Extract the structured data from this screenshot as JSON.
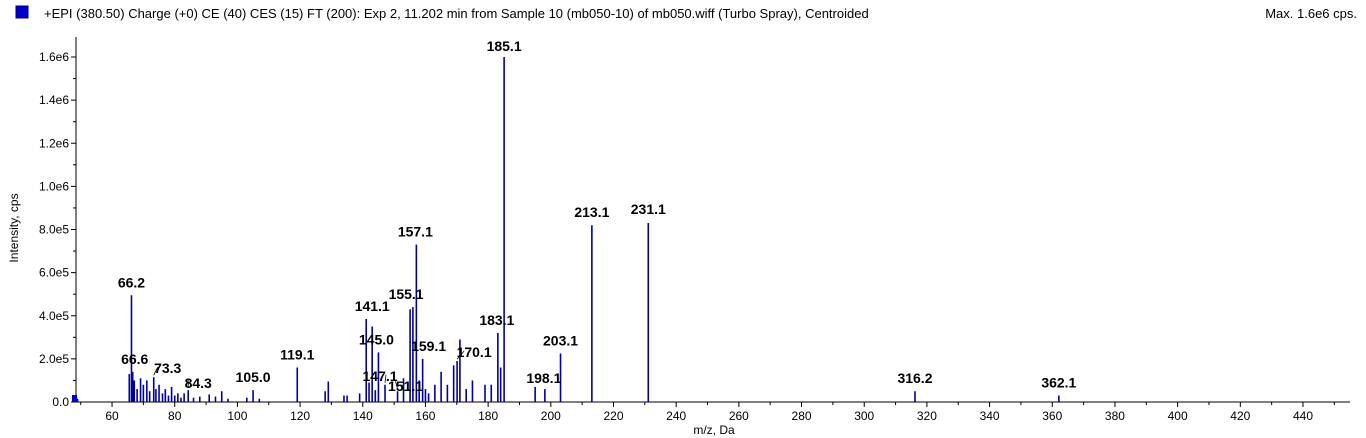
{
  "header": {
    "title": "+EPI (380.50) Charge (+0) CE (40) CES (15) FT (200): Exp 2, 11.202 min from Sample 10 (mb050-10) of mb050.wiff (Turbo Spray), Centroided",
    "max_label": "Max. 1.6e6 cps.",
    "legend_color": "#0000cc"
  },
  "chart_data": {
    "type": "bar",
    "xlabel": "m/z, Da",
    "ylabel": "Intensity, cps",
    "xlim": [
      48.5,
      455
    ],
    "ylim": [
      0,
      1650000
    ],
    "x_ticks": [
      60,
      80,
      100,
      120,
      140,
      160,
      180,
      200,
      220,
      240,
      260,
      280,
      300,
      320,
      340,
      360,
      380,
      400,
      420,
      440
    ],
    "y_ticks": [
      {
        "value": 0,
        "label": "0.0"
      },
      {
        "value": 200000,
        "label": "2.0e5"
      },
      {
        "value": 400000,
        "label": "4.0e5"
      },
      {
        "value": 600000,
        "label": "6.0e5"
      },
      {
        "value": 800000,
        "label": "8.0e5"
      },
      {
        "value": 1000000,
        "label": "1.0e6"
      },
      {
        "value": 1200000,
        "label": "1.2e6"
      },
      {
        "value": 1400000,
        "label": "1.4e6"
      },
      {
        "value": 1600000,
        "label": "1.6e6"
      }
    ],
    "bar_color": "#0000a0",
    "peaks": [
      {
        "x": 48.6,
        "y": 30000
      },
      {
        "x": 49.0,
        "y": 15000
      },
      {
        "x": 65.5,
        "y": 130000
      },
      {
        "x": 66.2,
        "y": 495000
      },
      {
        "x": 66.6,
        "y": 140000
      },
      {
        "x": 67.1,
        "y": 100000
      },
      {
        "x": 68.0,
        "y": 60000
      },
      {
        "x": 69.1,
        "y": 110000
      },
      {
        "x": 70.0,
        "y": 80000
      },
      {
        "x": 71.1,
        "y": 100000
      },
      {
        "x": 72.0,
        "y": 50000
      },
      {
        "x": 73.3,
        "y": 115000
      },
      {
        "x": 74.0,
        "y": 60000
      },
      {
        "x": 75.0,
        "y": 80000
      },
      {
        "x": 76.1,
        "y": 40000
      },
      {
        "x": 77.0,
        "y": 60000
      },
      {
        "x": 78.0,
        "y": 30000
      },
      {
        "x": 79.0,
        "y": 70000
      },
      {
        "x": 80.0,
        "y": 30000
      },
      {
        "x": 81.0,
        "y": 40000
      },
      {
        "x": 82.0,
        "y": 20000
      },
      {
        "x": 83.0,
        "y": 40000
      },
      {
        "x": 84.3,
        "y": 55000
      },
      {
        "x": 86.0,
        "y": 20000
      },
      {
        "x": 88.0,
        "y": 25000
      },
      {
        "x": 91.0,
        "y": 35000
      },
      {
        "x": 93.0,
        "y": 25000
      },
      {
        "x": 95.0,
        "y": 50000
      },
      {
        "x": 97.0,
        "y": 15000
      },
      {
        "x": 103.0,
        "y": 20000
      },
      {
        "x": 105.0,
        "y": 55000
      },
      {
        "x": 107.0,
        "y": 15000
      },
      {
        "x": 119.1,
        "y": 160000
      },
      {
        "x": 128.0,
        "y": 50000
      },
      {
        "x": 129.0,
        "y": 95000
      },
      {
        "x": 134.0,
        "y": 30000
      },
      {
        "x": 135.0,
        "y": 30000
      },
      {
        "x": 139.0,
        "y": 40000
      },
      {
        "x": 141.1,
        "y": 385000
      },
      {
        "x": 142.0,
        "y": 90000
      },
      {
        "x": 143.0,
        "y": 350000
      },
      {
        "x": 144.0,
        "y": 55000
      },
      {
        "x": 145.0,
        "y": 230000
      },
      {
        "x": 147.1,
        "y": 80000
      },
      {
        "x": 151.1,
        "y": 50000
      },
      {
        "x": 153.0,
        "y": 110000
      },
      {
        "x": 155.1,
        "y": 430000
      },
      {
        "x": 156.0,
        "y": 440000
      },
      {
        "x": 157.1,
        "y": 730000
      },
      {
        "x": 158.0,
        "y": 100000
      },
      {
        "x": 159.1,
        "y": 200000
      },
      {
        "x": 160.0,
        "y": 60000
      },
      {
        "x": 161.0,
        "y": 40000
      },
      {
        "x": 163.0,
        "y": 80000
      },
      {
        "x": 165.0,
        "y": 140000
      },
      {
        "x": 167.0,
        "y": 80000
      },
      {
        "x": 169.0,
        "y": 170000
      },
      {
        "x": 170.1,
        "y": 190000
      },
      {
        "x": 171.0,
        "y": 290000
      },
      {
        "x": 173.0,
        "y": 60000
      },
      {
        "x": 175.0,
        "y": 100000
      },
      {
        "x": 179.0,
        "y": 80000
      },
      {
        "x": 181.0,
        "y": 80000
      },
      {
        "x": 183.1,
        "y": 320000
      },
      {
        "x": 184.0,
        "y": 160000
      },
      {
        "x": 185.1,
        "y": 1600000
      },
      {
        "x": 195.0,
        "y": 70000
      },
      {
        "x": 198.1,
        "y": 60000
      },
      {
        "x": 203.1,
        "y": 225000
      },
      {
        "x": 213.1,
        "y": 820000
      },
      {
        "x": 231.1,
        "y": 830000
      },
      {
        "x": 316.2,
        "y": 50000
      },
      {
        "x": 362.1,
        "y": 30000
      }
    ],
    "peak_labels": [
      {
        "text": "66.2",
        "x": 66.2,
        "y": 495000
      },
      {
        "text": "66.6",
        "x": 66.6,
        "y": 140000
      },
      {
        "text": "73.3",
        "x": 73.3,
        "y": 115000
      },
      {
        "text": "84.3",
        "x": 84.3,
        "y": 55000
      },
      {
        "text": "105.0",
        "x": 105.0,
        "y": 55000
      },
      {
        "text": "119.1",
        "x": 119.1,
        "y": 160000
      },
      {
        "text": "141.1",
        "x": 141.1,
        "y": 385000
      },
      {
        "text": "145.0",
        "x": 145.0,
        "y": 230000
      },
      {
        "text": "147.1",
        "x": 147.1,
        "y": 80000
      },
      {
        "text": "151.1",
        "x": 151.1,
        "y": 50000
      },
      {
        "text": "155.1",
        "x": 155.1,
        "y": 440000
      },
      {
        "text": "157.1",
        "x": 157.1,
        "y": 730000
      },
      {
        "text": "159.1",
        "x": 159.1,
        "y": 200000
      },
      {
        "text": "170.1",
        "x": 170.1,
        "y": 190000
      },
      {
        "text": "183.1",
        "x": 183.1,
        "y": 320000
      },
      {
        "text": "185.1",
        "x": 185.1,
        "y": 1600000
      },
      {
        "text": "198.1",
        "x": 198.1,
        "y": 60000
      },
      {
        "text": "203.1",
        "x": 203.1,
        "y": 225000
      },
      {
        "text": "213.1",
        "x": 213.1,
        "y": 820000
      },
      {
        "text": "231.1",
        "x": 231.1,
        "y": 830000
      },
      {
        "text": "316.2",
        "x": 316.2,
        "y": 50000
      },
      {
        "text": "362.1",
        "x": 362.1,
        "y": 30000
      }
    ]
  }
}
